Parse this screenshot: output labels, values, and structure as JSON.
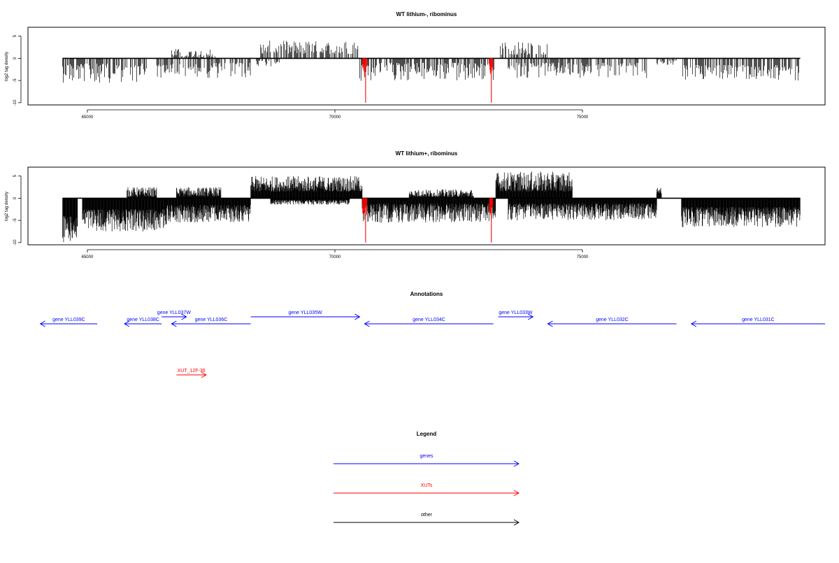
{
  "chart_data": [
    {
      "type": "bar",
      "title": "WT lithium-, ribominus",
      "xlabel": "",
      "ylabel": "log2 tag density",
      "xlim": [
        63800,
        79900
      ],
      "ylim": [
        -10.5,
        7
      ],
      "x_ticks": [
        65000,
        70000,
        75000
      ],
      "x_tick_labels": [
        "65000",
        "70000",
        "75000"
      ],
      "y_ticks": [
        -10,
        -5,
        0,
        5
      ],
      "y_tick_labels": [
        "-10",
        "-5",
        "0",
        "5"
      ],
      "grid": false,
      "baseline": {
        "from": 64500,
        "to": 79400,
        "y": 0
      },
      "series": [
        {
          "color": "#000000",
          "density": "sparse",
          "segments": [
            {
              "from": 64500,
              "to": 66200,
              "sign": -1,
              "min": 1.2,
              "max": 5.5
            },
            {
              "from": 66400,
              "to": 68300,
              "sign": -1,
              "min": 1.0,
              "max": 4.5
            },
            {
              "from": 66700,
              "to": 67600,
              "sign": 1,
              "min": 0.3,
              "max": 2.2
            },
            {
              "from": 68500,
              "to": 70500,
              "sign": 1,
              "min": 1.0,
              "max": 4.0
            },
            {
              "from": 68400,
              "to": 68900,
              "sign": -1,
              "min": 0.5,
              "max": 2.0
            },
            {
              "from": 70500,
              "to": 73250,
              "sign": -1,
              "min": 1.0,
              "max": 5.2
            },
            {
              "from": 73300,
              "to": 74300,
              "sign": 1,
              "min": 0.8,
              "max": 3.8
            },
            {
              "from": 73500,
              "to": 76300,
              "sign": -1,
              "min": 1.0,
              "max": 4.5
            },
            {
              "from": 76500,
              "to": 76900,
              "sign": -1,
              "min": 0.4,
              "max": 1.5
            },
            {
              "from": 77000,
              "to": 79400,
              "sign": -1,
              "min": 1.5,
              "max": 5.0
            }
          ]
        },
        {
          "color": "#ff0000",
          "density": "spikes",
          "points": [
            {
              "x": 70620,
              "y": -10
            },
            {
              "x": 73160,
              "y": -10
            }
          ],
          "clusters": [
            {
              "from": 70560,
              "to": 70650,
              "min": 1.5,
              "max": 4.0
            },
            {
              "from": 73120,
              "to": 73190,
              "min": 1.5,
              "max": 4.0
            }
          ]
        }
      ]
    },
    {
      "type": "bar",
      "title": "WT lithium+, ribominus",
      "xlabel": "",
      "ylabel": "log2 tag density",
      "xlim": [
        63800,
        79900
      ],
      "ylim": [
        -10.5,
        7
      ],
      "x_ticks": [
        65000,
        70000,
        75000
      ],
      "x_tick_labels": [
        "65000",
        "70000",
        "75000"
      ],
      "y_ticks": [
        -10,
        -5,
        0,
        5
      ],
      "y_tick_labels": [
        "-10",
        "-5",
        "0",
        "5"
      ],
      "grid": false,
      "baseline": {
        "from": 64500,
        "to": 79400,
        "y": 0
      },
      "series": [
        {
          "color": "#000000",
          "density": "dense",
          "segments": [
            {
              "from": 64500,
              "to": 64800,
              "sign": -1,
              "min": 4.0,
              "max": 10.0
            },
            {
              "from": 64900,
              "to": 66600,
              "sign": -1,
              "min": 2.5,
              "max": 7.5
            },
            {
              "from": 65800,
              "to": 66400,
              "sign": 1,
              "min": 0.3,
              "max": 2.5
            },
            {
              "from": 66600,
              "to": 68300,
              "sign": -1,
              "min": 1.5,
              "max": 5.5
            },
            {
              "from": 66800,
              "to": 67700,
              "sign": 1,
              "min": 0.4,
              "max": 2.5
            },
            {
              "from": 68300,
              "to": 70550,
              "sign": 1,
              "min": 1.5,
              "max": 5.0
            },
            {
              "from": 68700,
              "to": 70300,
              "sign": -1,
              "min": 0.4,
              "max": 1.5
            },
            {
              "from": 70550,
              "to": 73250,
              "sign": -1,
              "min": 1.2,
              "max": 5.5
            },
            {
              "from": 71500,
              "to": 72800,
              "sign": 1,
              "min": 0.3,
              "max": 2.0
            },
            {
              "from": 73250,
              "to": 74800,
              "sign": 1,
              "min": 1.5,
              "max": 6.0
            },
            {
              "from": 73500,
              "to": 76500,
              "sign": -1,
              "min": 1.2,
              "max": 5.0
            },
            {
              "from": 76500,
              "to": 76600,
              "sign": 1,
              "min": 1.0,
              "max": 2.5
            },
            {
              "from": 77000,
              "to": 79400,
              "sign": -1,
              "min": 2.0,
              "max": 6.5
            }
          ]
        },
        {
          "color": "#ff0000",
          "density": "spikes",
          "points": [
            {
              "x": 70620,
              "y": -10
            },
            {
              "x": 73160,
              "y": -10
            }
          ],
          "clusters": [
            {
              "from": 70560,
              "to": 70650,
              "min": 1.5,
              "max": 4.0
            },
            {
              "from": 73120,
              "to": 73190,
              "min": 1.5,
              "max": 4.0
            }
          ]
        }
      ]
    }
  ],
  "annotations": {
    "title": "Annotations",
    "features": [
      {
        "label": "gene YLL039C",
        "start": 64050,
        "end": 65200,
        "strand": "-",
        "row": 0,
        "color": "#0000ff"
      },
      {
        "label": "gene YLL038C",
        "start": 65750,
        "end": 66500,
        "strand": "-",
        "row": 0,
        "color": "#0000ff"
      },
      {
        "label": "gene YLL037W",
        "start": 66500,
        "end": 67000,
        "strand": "+",
        "row": 1,
        "color": "#0000ff"
      },
      {
        "label": "gene YLL036C",
        "start": 66700,
        "end": 68300,
        "strand": "-",
        "row": 0,
        "color": "#0000ff"
      },
      {
        "label": "gene YLL035W",
        "start": 68300,
        "end": 70500,
        "strand": "+",
        "row": 1,
        "color": "#0000ff"
      },
      {
        "label": "gene YLL034C",
        "start": 70600,
        "end": 73200,
        "strand": "-",
        "row": 0,
        "color": "#0000ff"
      },
      {
        "label": "gene YLL033W",
        "start": 73300,
        "end": 74000,
        "strand": "+",
        "row": 1,
        "color": "#0000ff"
      },
      {
        "label": "gene YLL032C",
        "start": 74300,
        "end": 76900,
        "strand": "-",
        "row": 0,
        "color": "#0000ff"
      },
      {
        "label": "gene YLL031C",
        "start": 77200,
        "end": 79900,
        "strand": "-",
        "row": 0,
        "color": "#0000ff"
      },
      {
        "label": "XUT_12F-36",
        "start": 66800,
        "end": 67400,
        "strand": "+",
        "row": 2,
        "color": "#ff0000"
      }
    ]
  },
  "legend": {
    "title": "Legend",
    "items": [
      {
        "label": "genes",
        "color": "#0000ff"
      },
      {
        "label": "XUTs",
        "color": "#ff0000"
      },
      {
        "label": "other",
        "color": "#000000"
      }
    ]
  }
}
